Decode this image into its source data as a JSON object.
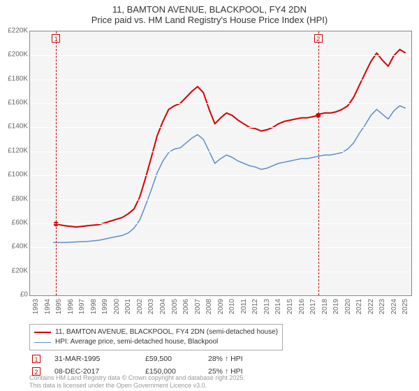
{
  "title_line1": "11, BAMTON AVENUE, BLACKPOOL, FY4 2DN",
  "title_line2": "Price paid vs. HM Land Registry's House Price Index (HPI)",
  "background_color": "#f5f5f5",
  "grid_color": "#ffffff",
  "axis_color": "#888888",
  "text_color": "#666666",
  "x_min": 1993,
  "x_max": 2026,
  "x_ticks": [
    1993,
    1994,
    1995,
    1996,
    1997,
    1998,
    1999,
    2000,
    2001,
    2002,
    2003,
    2004,
    2005,
    2006,
    2007,
    2008,
    2009,
    2010,
    2011,
    2012,
    2013,
    2014,
    2015,
    2016,
    2017,
    2018,
    2019,
    2020,
    2021,
    2022,
    2023,
    2024,
    2025
  ],
  "y_min": 0,
  "y_max": 220000,
  "y_ticks": [
    0,
    20000,
    40000,
    60000,
    80000,
    100000,
    120000,
    140000,
    160000,
    180000,
    200000,
    220000
  ],
  "y_tick_labels": [
    "£0",
    "£20K",
    "£40K",
    "£60K",
    "£80K",
    "£100K",
    "£120K",
    "£140K",
    "£160K",
    "£180K",
    "£200K",
    "£220K"
  ],
  "series": [
    {
      "name": "11, BAMTON AVENUE, BLACKPOOL, FY4 2DN (semi-detached house)",
      "color": "#d40000",
      "width": 2,
      "points": [
        [
          1995.25,
          59500
        ],
        [
          1996,
          58000
        ],
        [
          1997,
          57000
        ],
        [
          1998,
          58000
        ],
        [
          1999,
          59000
        ],
        [
          2000,
          62000
        ],
        [
          2001,
          65000
        ],
        [
          2001.5,
          68000
        ],
        [
          2002,
          72000
        ],
        [
          2002.5,
          82000
        ],
        [
          2003,
          98000
        ],
        [
          2003.5,
          115000
        ],
        [
          2004,
          133000
        ],
        [
          2004.5,
          145000
        ],
        [
          2005,
          155000
        ],
        [
          2005.5,
          158000
        ],
        [
          2006,
          160000
        ],
        [
          2006.5,
          165000
        ],
        [
          2007,
          170000
        ],
        [
          2007.5,
          174000
        ],
        [
          2008,
          169000
        ],
        [
          2008.5,
          155000
        ],
        [
          2009,
          143000
        ],
        [
          2009.5,
          148000
        ],
        [
          2010,
          152000
        ],
        [
          2010.5,
          150000
        ],
        [
          2011,
          146000
        ],
        [
          2011.5,
          143000
        ],
        [
          2012,
          140000
        ],
        [
          2012.5,
          139000
        ],
        [
          2013,
          137000
        ],
        [
          2013.5,
          138000
        ],
        [
          2014,
          140000
        ],
        [
          2014.5,
          143000
        ],
        [
          2015,
          145000
        ],
        [
          2015.5,
          146000
        ],
        [
          2016,
          147000
        ],
        [
          2016.5,
          148000
        ],
        [
          2017,
          148000
        ],
        [
          2017.5,
          149000
        ],
        [
          2017.94,
          150000
        ],
        [
          2018,
          151000
        ],
        [
          2018.5,
          152000
        ],
        [
          2019,
          152000
        ],
        [
          2019.5,
          153000
        ],
        [
          2020,
          155000
        ],
        [
          2020.5,
          158000
        ],
        [
          2021,
          165000
        ],
        [
          2021.5,
          175000
        ],
        [
          2022,
          185000
        ],
        [
          2022.5,
          195000
        ],
        [
          2023,
          202000
        ],
        [
          2023.5,
          196000
        ],
        [
          2024,
          191000
        ],
        [
          2024.5,
          200000
        ],
        [
          2025,
          205000
        ],
        [
          2025.5,
          202000
        ]
      ]
    },
    {
      "name": "HPI: Average price, semi-detached house, Blackpool",
      "color": "#5b8fc7",
      "width": 1.5,
      "points": [
        [
          1995,
          44000
        ],
        [
          1996,
          44000
        ],
        [
          1997,
          44500
        ],
        [
          1998,
          45000
        ],
        [
          1999,
          46000
        ],
        [
          2000,
          48000
        ],
        [
          2001,
          50000
        ],
        [
          2001.5,
          52000
        ],
        [
          2002,
          56000
        ],
        [
          2002.5,
          63000
        ],
        [
          2003,
          75000
        ],
        [
          2003.5,
          88000
        ],
        [
          2004,
          102000
        ],
        [
          2004.5,
          112000
        ],
        [
          2005,
          119000
        ],
        [
          2005.5,
          122000
        ],
        [
          2006,
          123000
        ],
        [
          2006.5,
          127000
        ],
        [
          2007,
          131000
        ],
        [
          2007.5,
          134000
        ],
        [
          2008,
          130000
        ],
        [
          2008.5,
          120000
        ],
        [
          2009,
          110000
        ],
        [
          2009.5,
          114000
        ],
        [
          2010,
          117000
        ],
        [
          2010.5,
          115000
        ],
        [
          2011,
          112000
        ],
        [
          2011.5,
          110000
        ],
        [
          2012,
          108000
        ],
        [
          2012.5,
          107000
        ],
        [
          2013,
          105000
        ],
        [
          2013.5,
          106000
        ],
        [
          2014,
          108000
        ],
        [
          2014.5,
          110000
        ],
        [
          2015,
          111000
        ],
        [
          2015.5,
          112000
        ],
        [
          2016,
          113000
        ],
        [
          2016.5,
          114000
        ],
        [
          2017,
          114000
        ],
        [
          2017.5,
          115000
        ],
        [
          2018,
          116000
        ],
        [
          2018.5,
          117000
        ],
        [
          2019,
          117000
        ],
        [
          2019.5,
          118000
        ],
        [
          2020,
          119000
        ],
        [
          2020.5,
          122000
        ],
        [
          2021,
          127000
        ],
        [
          2021.5,
          135000
        ],
        [
          2022,
          142000
        ],
        [
          2022.5,
          150000
        ],
        [
          2023,
          155000
        ],
        [
          2023.5,
          151000
        ],
        [
          2024,
          147000
        ],
        [
          2024.5,
          154000
        ],
        [
          2025,
          158000
        ],
        [
          2025.5,
          156000
        ]
      ]
    }
  ],
  "markers": [
    {
      "label": "1",
      "year": 1995.25,
      "dot_y": 59500
    },
    {
      "label": "2",
      "year": 2017.94,
      "dot_y": 150000
    }
  ],
  "sales": [
    {
      "marker": "1",
      "date": "31-MAR-1995",
      "price": "£59,500",
      "pct": "28% ↑ HPI"
    },
    {
      "marker": "2",
      "date": "08-DEC-2017",
      "price": "£150,000",
      "pct": "25% ↑ HPI"
    }
  ],
  "footer_line1": "Contains HM Land Registry data © Crown copyright and database right 2025.",
  "footer_line2": "This data is licensed under the Open Government Licence v3.0.",
  "legend_items": [
    {
      "color": "#d40000",
      "width": 2,
      "label": "11, BAMTON AVENUE, BLACKPOOL, FY4 2DN (semi-detached house)"
    },
    {
      "color": "#5b8fc7",
      "width": 1.5,
      "label": "HPI: Average price, semi-detached house, Blackpool"
    }
  ]
}
